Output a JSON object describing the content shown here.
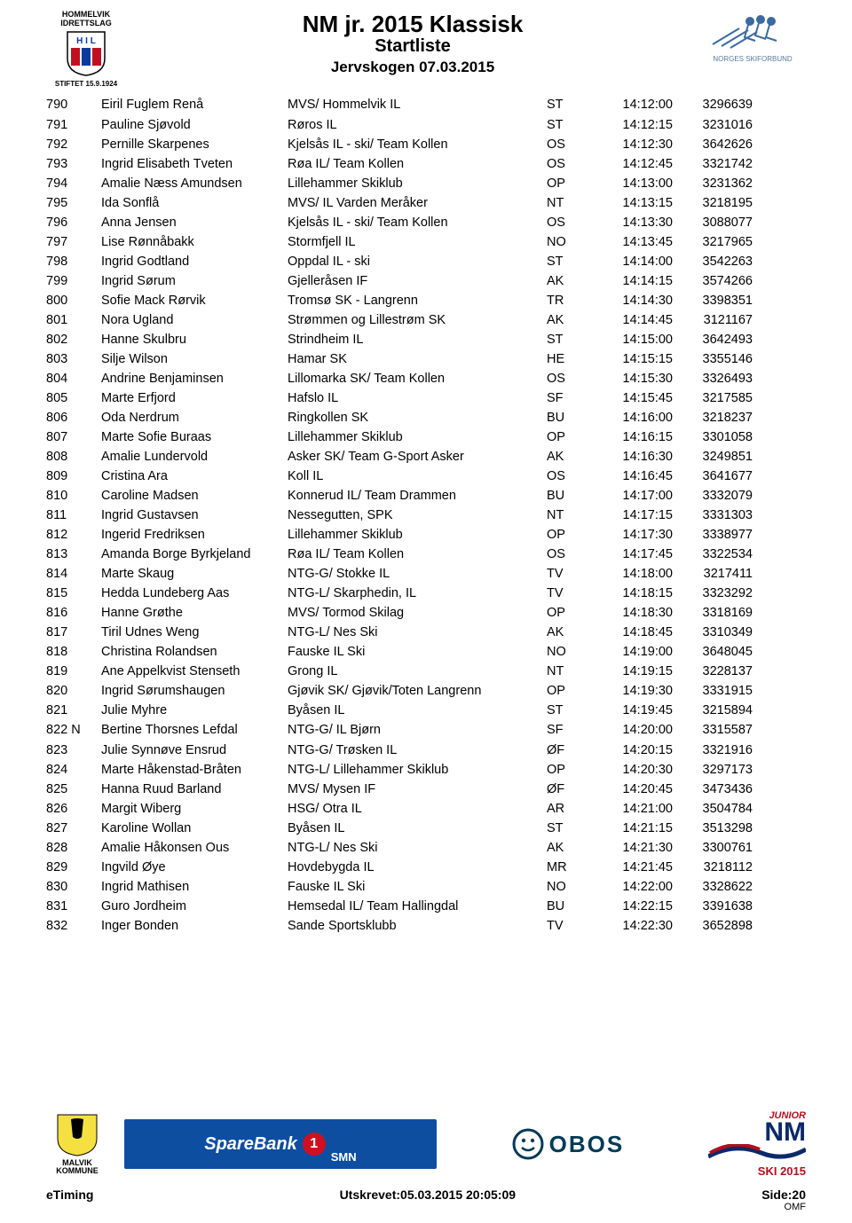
{
  "header": {
    "club_top": "HOMMELVIK",
    "club_bottom": "IDRETTSLAG",
    "club_initials_top": "H I L",
    "founded": "STIFTET 15.9.1924",
    "main_title": "NM jr. 2015 Klassisk",
    "subtitle": "Startliste",
    "sub2": "Jervskogen 07.03.2015",
    "right_org": "NORGES SKIFORBUND"
  },
  "rows": [
    {
      "bib": "790",
      "name": "Eiril Fuglem Renå",
      "club": "MVS/ Hommelvik IL",
      "reg": "ST",
      "time": "14:12:00",
      "id": "3296639"
    },
    {
      "bib": "791",
      "name": "Pauline Sjøvold",
      "club": "Røros IL",
      "reg": "ST",
      "time": "14:12:15",
      "id": "3231016"
    },
    {
      "bib": "792",
      "name": "Pernille Skarpenes",
      "club": "Kjelsås IL - ski/ Team Kollen",
      "reg": "OS",
      "time": "14:12:30",
      "id": "3642626"
    },
    {
      "bib": "793",
      "name": "Ingrid Elisabeth Tveten",
      "club": "Røa IL/ Team Kollen",
      "reg": "OS",
      "time": "14:12:45",
      "id": "3321742"
    },
    {
      "bib": "794",
      "name": "Amalie Næss Amundsen",
      "club": "Lillehammer Skiklub",
      "reg": "OP",
      "time": "14:13:00",
      "id": "3231362"
    },
    {
      "bib": "795",
      "name": "Ida Sonflå",
      "club": "MVS/ IL Varden Meråker",
      "reg": "NT",
      "time": "14:13:15",
      "id": "3218195"
    },
    {
      "bib": "796",
      "name": "Anna Jensen",
      "club": "Kjelsås IL - ski/ Team Kollen",
      "reg": "OS",
      "time": "14:13:30",
      "id": "3088077"
    },
    {
      "bib": "797",
      "name": "Lise Rønnåbakk",
      "club": "Stormfjell IL",
      "reg": "NO",
      "time": "14:13:45",
      "id": "3217965"
    },
    {
      "bib": "798",
      "name": "Ingrid Godtland",
      "club": "Oppdal IL - ski",
      "reg": "ST",
      "time": "14:14:00",
      "id": "3542263"
    },
    {
      "bib": "799",
      "name": "Ingrid Sørum",
      "club": "Gjelleråsen IF",
      "reg": "AK",
      "time": "14:14:15",
      "id": "3574266"
    },
    {
      "bib": "800",
      "name": "Sofie Mack Rørvik",
      "club": "Tromsø SK -  Langrenn",
      "reg": "TR",
      "time": "14:14:30",
      "id": "3398351"
    },
    {
      "bib": "801",
      "name": "Nora Ugland",
      "club": "Strømmen og Lillestrøm SK",
      "reg": "AK",
      "time": "14:14:45",
      "id": "3121167"
    },
    {
      "bib": "802",
      "name": "Hanne Skulbru",
      "club": "Strindheim IL",
      "reg": "ST",
      "time": "14:15:00",
      "id": "3642493"
    },
    {
      "bib": "803",
      "name": "Silje Wilson",
      "club": "Hamar SK",
      "reg": "HE",
      "time": "14:15:15",
      "id": "3355146"
    },
    {
      "bib": "804",
      "name": "Andrine Benjaminsen",
      "club": "Lillomarka SK/ Team Kollen",
      "reg": "OS",
      "time": "14:15:30",
      "id": "3326493"
    },
    {
      "bib": "805",
      "name": "Marte Erfjord",
      "club": "Hafslo IL",
      "reg": "SF",
      "time": "14:15:45",
      "id": "3217585"
    },
    {
      "bib": "806",
      "name": "Oda Nerdrum",
      "club": "Ringkollen SK",
      "reg": "BU",
      "time": "14:16:00",
      "id": "3218237"
    },
    {
      "bib": "807",
      "name": "Marte Sofie Buraas",
      "club": "Lillehammer Skiklub",
      "reg": "OP",
      "time": "14:16:15",
      "id": "3301058"
    },
    {
      "bib": "808",
      "name": "Amalie Lundervold",
      "club": "Asker SK/ Team G-Sport Asker",
      "reg": "AK",
      "time": "14:16:30",
      "id": "3249851"
    },
    {
      "bib": "809",
      "name": "Cristina Ara",
      "club": "Koll IL",
      "reg": "OS",
      "time": "14:16:45",
      "id": "3641677"
    },
    {
      "bib": "810",
      "name": "Caroline Madsen",
      "club": "Konnerud IL/ Team Drammen",
      "reg": "BU",
      "time": "14:17:00",
      "id": "3332079"
    },
    {
      "bib": "811",
      "name": "Ingrid Gustavsen",
      "club": "Nessegutten, SPK",
      "reg": "NT",
      "time": "14:17:15",
      "id": "3331303"
    },
    {
      "bib": "812",
      "name": "Ingerid Fredriksen",
      "club": "Lillehammer Skiklub",
      "reg": "OP",
      "time": "14:17:30",
      "id": "3338977"
    },
    {
      "bib": "813",
      "name": "Amanda Borge Byrkjeland",
      "club": "Røa IL/ Team Kollen",
      "reg": "OS",
      "time": "14:17:45",
      "id": "3322534"
    },
    {
      "bib": "814",
      "name": "Marte Skaug",
      "club": "NTG-G/ Stokke IL",
      "reg": "TV",
      "time": "14:18:00",
      "id": "3217411"
    },
    {
      "bib": "815",
      "name": "Hedda Lundeberg Aas",
      "club": "NTG-L/ Skarphedin, IL",
      "reg": "TV",
      "time": "14:18:15",
      "id": "3323292"
    },
    {
      "bib": "816",
      "name": "Hanne Grøthe",
      "club": "MVS/ Tormod Skilag",
      "reg": "OP",
      "time": "14:18:30",
      "id": "3318169"
    },
    {
      "bib": "817",
      "name": "Tiril Udnes Weng",
      "club": "NTG-L/ Nes Ski",
      "reg": "AK",
      "time": "14:18:45",
      "id": "3310349"
    },
    {
      "bib": "818",
      "name": "Christina Rolandsen",
      "club": "Fauske IL Ski",
      "reg": "NO",
      "time": "14:19:00",
      "id": "3648045"
    },
    {
      "bib": "819",
      "name": "Ane Appelkvist Stenseth",
      "club": "Grong IL",
      "reg": "NT",
      "time": "14:19:15",
      "id": "3228137"
    },
    {
      "bib": "820",
      "name": "Ingrid Sørumshaugen",
      "club": "Gjøvik SK/ Gjøvik/Toten Langrenn",
      "reg": "OP",
      "time": "14:19:30",
      "id": "3331915"
    },
    {
      "bib": "821",
      "name": "Julie Myhre",
      "club": "Byåsen IL",
      "reg": "ST",
      "time": "14:19:45",
      "id": "3215894"
    },
    {
      "bib": "822 N",
      "name": "Bertine Thorsnes Lefdal",
      "club": "NTG-G/ IL Bjørn",
      "reg": "SF",
      "time": "14:20:00",
      "id": "3315587"
    },
    {
      "bib": "823",
      "name": "Julie Synnøve Ensrud",
      "club": "NTG-G/ Trøsken IL",
      "reg": "ØF",
      "time": "14:20:15",
      "id": "3321916"
    },
    {
      "bib": "824",
      "name": "Marte Håkenstad-Bråten",
      "club": "NTG-L/ Lillehammer Skiklub",
      "reg": "OP",
      "time": "14:20:30",
      "id": "3297173"
    },
    {
      "bib": "825",
      "name": "Hanna Ruud Barland",
      "club": "MVS/ Mysen IF",
      "reg": "ØF",
      "time": "14:20:45",
      "id": "3473436"
    },
    {
      "bib": "826",
      "name": "Margit Wiberg",
      "club": "HSG/ Otra IL",
      "reg": "AR",
      "time": "14:21:00",
      "id": "3504784"
    },
    {
      "bib": "827",
      "name": "Karoline Wollan",
      "club": "Byåsen IL",
      "reg": "ST",
      "time": "14:21:15",
      "id": "3513298"
    },
    {
      "bib": "828",
      "name": "Amalie Håkonsen Ous",
      "club": "NTG-L/ Nes Ski",
      "reg": "AK",
      "time": "14:21:30",
      "id": "3300761"
    },
    {
      "bib": "829",
      "name": "Ingvild Øye",
      "club": "Hovdebygda IL",
      "reg": "MR",
      "time": "14:21:45",
      "id": "3218112"
    },
    {
      "bib": "830",
      "name": "Ingrid Mathisen",
      "club": "Fauske IL Ski",
      "reg": "NO",
      "time": "14:22:00",
      "id": "3328622"
    },
    {
      "bib": "831",
      "name": "Guro Jordheim",
      "club": "Hemsedal IL/ Team Hallingdal",
      "reg": "BU",
      "time": "14:22:15",
      "id": "3391638"
    },
    {
      "bib": "832",
      "name": "Inger Bonden",
      "club": "Sande Sportsklubb",
      "reg": "TV",
      "time": "14:22:30",
      "id": "3652898"
    }
  ],
  "sponsors": {
    "malvik_top": "MALVIK",
    "malvik_bottom": "KOMMUNE",
    "sparebank": "SpareBank",
    "sparebank_sub": "SMN",
    "sparebank_one": "1",
    "obos": "OBOS",
    "junior": "JUNIOR",
    "nm": "NM",
    "ski2015": "SKI 2015"
  },
  "footer": {
    "left": "eTiming",
    "center": "Utskrevet:05.03.2015 20:05:09",
    "right": "Side:20",
    "omf": "OMF"
  }
}
